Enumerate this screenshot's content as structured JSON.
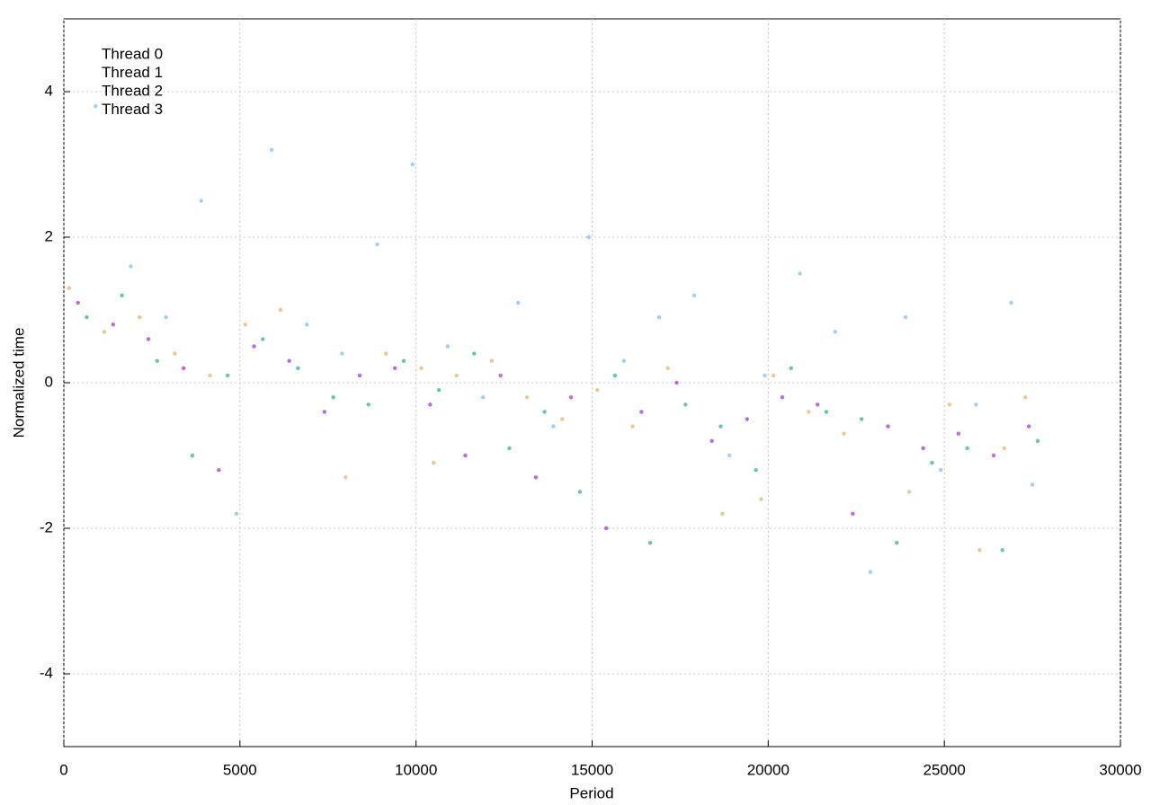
{
  "chart_data": {
    "type": "scatter",
    "xlabel": "Period",
    "ylabel": "Normalized time",
    "xlim": [
      0,
      30000
    ],
    "xticks": [
      0,
      5000,
      10000,
      15000,
      20000,
      25000,
      30000
    ],
    "ylim": [
      -5,
      5
    ],
    "yticks": [
      -4,
      -2,
      0,
      2,
      4
    ],
    "grid": true,
    "legend": "top-left",
    "series": [
      {
        "name": "Thread 0",
        "color": "#9400d3",
        "x": [
          400,
          1400,
          2400,
          3400,
          4400,
          5400,
          6400,
          7400,
          8400,
          9400,
          10400,
          11400,
          12400,
          13400,
          14400,
          15400,
          16400,
          17400,
          18400,
          19400,
          20400,
          21400,
          22400,
          23400,
          24400,
          25400,
          26400,
          27400
        ],
        "values": [
          1.1,
          0.8,
          0.6,
          0.2,
          -1.2,
          0.5,
          0.3,
          -0.4,
          0.1,
          0.2,
          -0.3,
          -1.0,
          0.1,
          -1.3,
          -0.2,
          -2.0,
          -0.4,
          0.0,
          -0.8,
          -0.5,
          -0.2,
          -0.3,
          -1.8,
          -0.6,
          -0.9,
          -0.7,
          -1.0,
          -0.6
        ]
      },
      {
        "name": "Thread 1",
        "color": "#009e73",
        "x": [
          650,
          1650,
          2650,
          3650,
          4650,
          5650,
          6650,
          7650,
          8650,
          9650,
          10650,
          11650,
          12650,
          13650,
          14650,
          15650,
          16650,
          17650,
          18650,
          19650,
          20650,
          21650,
          22650,
          23650,
          24650,
          25650,
          26650,
          27650
        ],
        "values": [
          0.9,
          1.2,
          0.3,
          -1.0,
          0.1,
          0.6,
          0.2,
          -0.2,
          -0.3,
          0.3,
          -0.1,
          0.4,
          -0.9,
          -0.4,
          -1.5,
          0.1,
          -2.2,
          -0.3,
          -0.6,
          -1.2,
          0.2,
          -0.4,
          -0.5,
          -2.2,
          -1.1,
          -0.9,
          -2.3,
          -0.8
        ]
      },
      {
        "name": "Thread 2",
        "color": "#56b4e9",
        "x": [
          900,
          1900,
          2900,
          3900,
          4900,
          5900,
          6900,
          7900,
          8900,
          9900,
          10900,
          11900,
          12900,
          13900,
          14900,
          15900,
          16900,
          17900,
          18900,
          19900,
          20900,
          21900,
          22900,
          23900,
          24900,
          25900,
          26900,
          27500
        ],
        "values": [
          3.8,
          1.6,
          0.9,
          2.5,
          -1.8,
          3.2,
          0.8,
          0.4,
          1.9,
          3.0,
          0.5,
          -0.2,
          1.1,
          -0.6,
          2.0,
          0.3,
          0.9,
          1.2,
          -1.0,
          0.1,
          1.5,
          0.7,
          -2.6,
          0.9,
          -1.2,
          -0.3,
          1.1,
          -1.4
        ]
      },
      {
        "name": "Thread 3",
        "color": "#e6a23c",
        "x": [
          150,
          1150,
          2150,
          3150,
          4150,
          5150,
          6150,
          8000,
          9150,
          10150,
          10500,
          11150,
          12150,
          13150,
          14150,
          15150,
          16150,
          17150,
          18700,
          19800,
          20150,
          21150,
          22150,
          24000,
          25150,
          26000,
          26700,
          27300
        ],
        "values": [
          1.3,
          0.7,
          0.9,
          0.4,
          0.1,
          0.8,
          1.0,
          -1.3,
          0.4,
          0.2,
          -1.1,
          0.1,
          0.3,
          -0.2,
          -0.5,
          -0.1,
          -0.6,
          0.2,
          -1.8,
          -1.6,
          0.1,
          -0.4,
          -0.7,
          -1.5,
          -0.3,
          -2.3,
          -0.9,
          -0.2
        ]
      }
    ]
  }
}
